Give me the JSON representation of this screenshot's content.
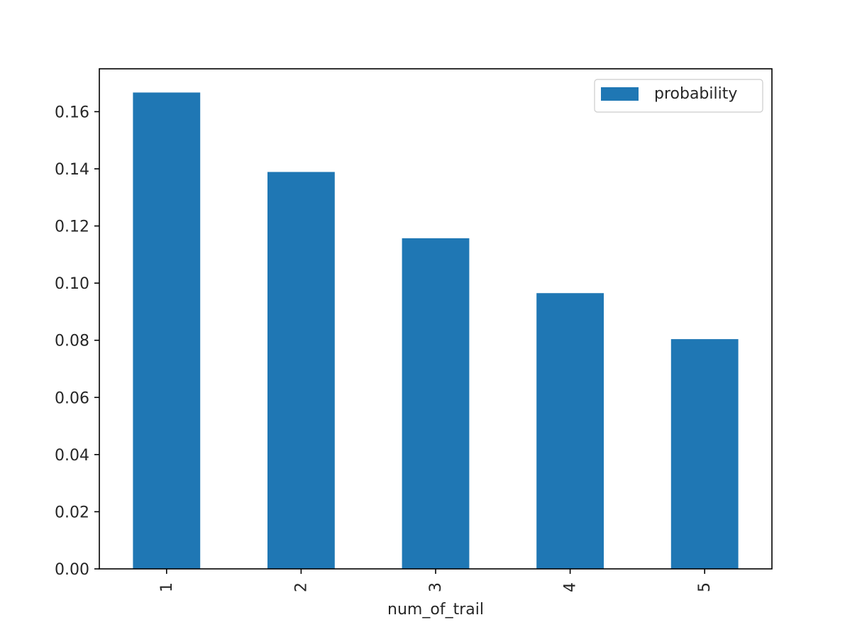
{
  "chart_data": {
    "type": "bar",
    "categories": [
      "1",
      "2",
      "3",
      "4",
      "5"
    ],
    "series": [
      {
        "name": "probability",
        "values": [
          0.1667,
          0.1389,
          0.1157,
          0.0965,
          0.0804
        ],
        "color": "#1f77b4"
      }
    ],
    "xlabel": "num_of_trail",
    "ylabel": "",
    "title": "",
    "ylim": [
      0,
      0.175
    ],
    "yticks": [
      0.0,
      0.02,
      0.04,
      0.06,
      0.08,
      0.1,
      0.12,
      0.14,
      0.16
    ],
    "ytick_labels": [
      "0.00",
      "0.02",
      "0.04",
      "0.06",
      "0.08",
      "0.10",
      "0.12",
      "0.14",
      "0.16"
    ],
    "xtick_rotation": "vertical",
    "grid": false,
    "legend_position": "top-right"
  }
}
